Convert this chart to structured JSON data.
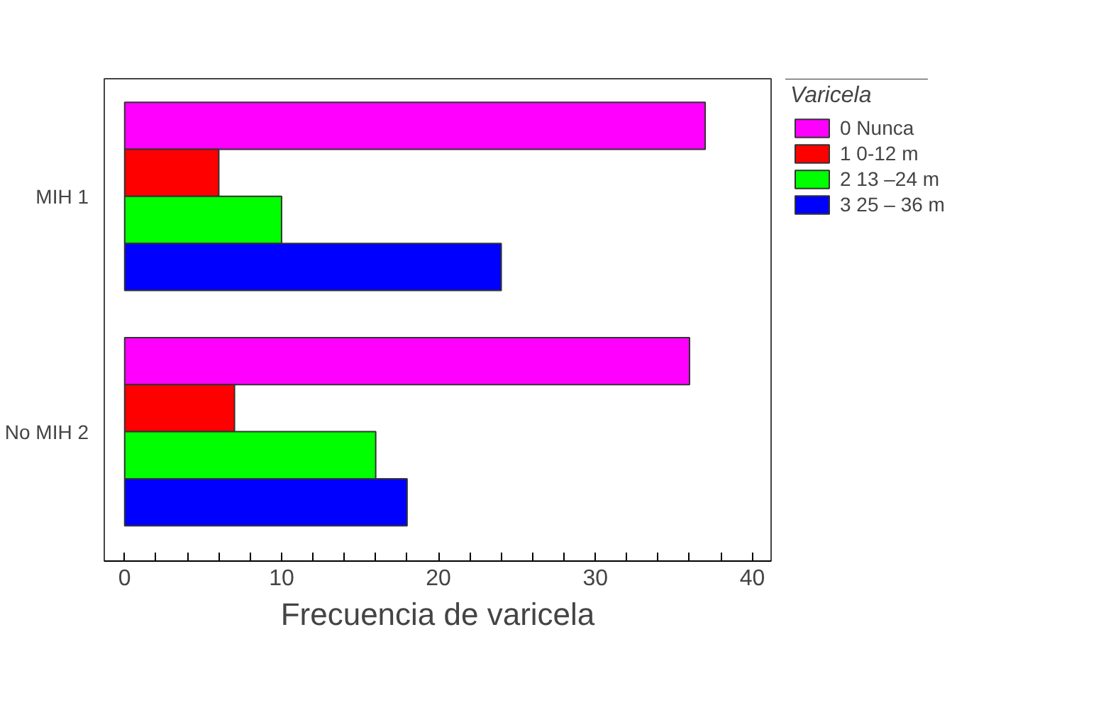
{
  "chart_data": {
    "type": "bar",
    "orientation": "horizontal",
    "xlabel": "Frecuencia de varicela",
    "legend_title": "Varicela",
    "categories": [
      "MIH 1",
      "No MIH 2"
    ],
    "series": [
      {
        "name": "0 Nunca",
        "color": "#ff00ff",
        "values": [
          37,
          36
        ]
      },
      {
        "name": "1 0-12 m",
        "color": "#ff0000",
        "values": [
          6,
          7
        ]
      },
      {
        "name": "2 13 –24 m",
        "color": "#00ff00",
        "values": [
          10,
          16
        ]
      },
      {
        "name": "3 25 – 36 m",
        "color": "#0000ff",
        "values": [
          24,
          18
        ]
      }
    ],
    "xlim": [
      -1.3,
      41.2
    ],
    "xticks": [
      0,
      {
        "value": 2,
        "label": null
      },
      {
        "value": 4,
        "label": null
      },
      {
        "value": 6,
        "label": null
      },
      {
        "value": 8,
        "label": null
      },
      10,
      {
        "value": 12,
        "label": null
      },
      {
        "value": 14,
        "label": null
      },
      {
        "value": 16,
        "label": null
      },
      {
        "value": 18,
        "label": null
      },
      20,
      {
        "value": 22,
        "label": null
      },
      {
        "value": 24,
        "label": null
      },
      {
        "value": 26,
        "label": null
      },
      {
        "value": 28,
        "label": null
      },
      30,
      {
        "value": 32,
        "label": null
      },
      {
        "value": 34,
        "label": null
      },
      {
        "value": 36,
        "label": null
      },
      {
        "value": 38,
        "label": null
      },
      40
    ],
    "grid": false,
    "legend": "right"
  }
}
